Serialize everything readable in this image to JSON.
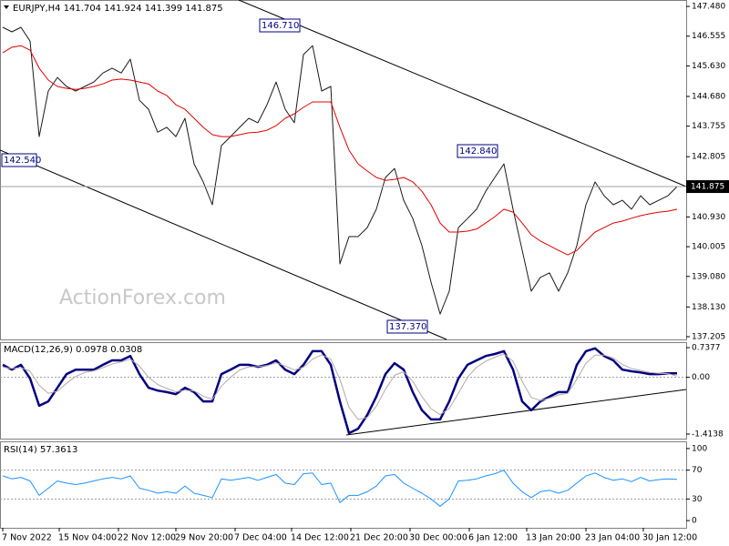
{
  "chart_data": [
    {
      "type": "line",
      "title": "EURJPY,H4  141.704 141.924 141.399 141.875",
      "watermark": "ActionForex.com",
      "xlim": [
        0,
        75
      ],
      "ylim": [
        137.12,
        147.68
      ],
      "yticks": [
        {
          "value": 147.48,
          "label": "147.480"
        },
        146.555,
        {
          "value": 145.63,
          "label": "145.630"
        },
        {
          "value": 144.68,
          "label": "144.680"
        },
        143.755,
        142.805,
        {
          "value": 140.93,
          "label": "140.930"
        },
        {
          "value": 140.005,
          "label": "140.005"
        },
        {
          "value": 139.08,
          "label": "139.080"
        },
        {
          "value": 138.13,
          "label": "138.130"
        },
        137.205
      ],
      "last_price": 141.875,
      "annotations": [
        "146.710",
        "142.540",
        "142.840",
        "137.370"
      ],
      "series": [
        {
          "color": "#1a1a1a",
          "width": 1,
          "values": [
            146.83,
            146.69,
            146.83,
            146.4,
            143.43,
            144.85,
            145.27,
            144.99,
            144.85,
            144.99,
            145.13,
            145.41,
            145.56,
            145.41,
            145.84,
            144.56,
            144.28,
            143.57,
            143.72,
            143.43,
            144.0,
            142.58,
            142.02,
            141.31,
            143.15,
            143.43,
            143.72,
            144.0,
            143.86,
            144.42,
            145.13,
            144.28,
            143.86,
            145.98,
            146.26,
            144.85,
            144.99,
            139.47,
            140.32,
            140.32,
            140.6,
            141.17,
            142.16,
            142.44,
            141.45,
            140.88,
            140.04,
            138.9,
            137.91,
            138.62,
            140.6,
            140.88,
            141.17,
            141.73,
            142.16,
            142.58,
            141.17,
            139.9,
            138.62,
            139.05,
            139.19,
            138.62,
            139.19,
            140.04,
            141.31,
            142.02,
            141.59,
            141.31,
            141.45,
            141.17,
            141.59,
            141.31,
            141.45,
            141.59,
            141.875
          ]
        },
        {
          "color": "#e00000",
          "width": 1,
          "values": [
            146.04,
            146.21,
            146.26,
            146.12,
            145.56,
            145.19,
            144.99,
            144.93,
            144.9,
            144.93,
            144.99,
            145.07,
            145.19,
            145.22,
            145.19,
            145.13,
            145.07,
            144.85,
            144.71,
            144.42,
            144.28,
            144.0,
            143.72,
            143.49,
            143.43,
            143.43,
            143.49,
            143.55,
            143.57,
            143.63,
            143.77,
            144.0,
            144.14,
            144.34,
            144.51,
            144.51,
            144.51,
            143.72,
            143.01,
            142.58,
            142.36,
            142.16,
            142.07,
            142.1,
            142.16,
            142.02,
            141.73,
            141.31,
            140.74,
            140.46,
            140.46,
            140.49,
            140.55,
            140.74,
            140.94,
            141.17,
            141.08,
            140.74,
            140.38,
            140.18,
            140.04,
            139.89,
            139.75,
            139.89,
            140.18,
            140.46,
            140.6,
            140.74,
            140.8,
            140.89,
            140.97,
            141.03,
            141.08,
            141.11,
            141.17
          ]
        }
      ]
    },
    {
      "type": "line",
      "title": "MACD(12,26,9) 0.0978 0.0308",
      "xlim": [
        0,
        75
      ],
      "ylim": [
        -1.527,
        0.874
      ],
      "yticks": [
        0.7377,
        {
          "value": 0,
          "label": "0.00"
        },
        -1.4138
      ],
      "levels": [
        0
      ],
      "series": [
        {
          "color": "#000080",
          "width": 2.5,
          "values": [
            0.31,
            0.19,
            0.31,
            -0.03,
            -0.71,
            -0.6,
            -0.26,
            0.08,
            0.19,
            0.19,
            0.19,
            0.31,
            0.42,
            0.42,
            0.53,
            0.08,
            -0.26,
            -0.33,
            -0.37,
            -0.42,
            -0.26,
            -0.37,
            -0.6,
            -0.6,
            0.08,
            0.19,
            0.31,
            0.31,
            0.26,
            0.31,
            0.42,
            0.19,
            0.08,
            0.31,
            0.65,
            0.65,
            0.31,
            -0.6,
            -1.39,
            -1.28,
            -0.94,
            -0.48,
            0.08,
            0.35,
            0.19,
            -0.37,
            -0.82,
            -1.05,
            -1.05,
            -0.6,
            -0.03,
            0.31,
            0.42,
            0.53,
            0.58,
            0.65,
            0.19,
            -0.6,
            -0.82,
            -0.6,
            -0.48,
            -0.37,
            -0.37,
            0.31,
            0.65,
            0.72,
            0.53,
            0.42,
            0.19,
            0.15,
            0.12,
            0.08,
            0.08,
            0.1,
            0.0978
          ]
        },
        {
          "color": "#b8a8a8",
          "width": 1,
          "values": [
            0.25,
            0.22,
            0.24,
            0.15,
            -0.2,
            -0.4,
            -0.35,
            -0.15,
            0.02,
            0.12,
            0.16,
            0.24,
            0.33,
            0.38,
            0.45,
            0.28,
            0.0,
            -0.18,
            -0.28,
            -0.36,
            -0.32,
            -0.34,
            -0.47,
            -0.55,
            -0.22,
            0.0,
            0.18,
            0.26,
            0.27,
            0.29,
            0.36,
            0.28,
            0.18,
            0.25,
            0.45,
            0.56,
            0.45,
            -0.05,
            -0.75,
            -1.05,
            -1.0,
            -0.72,
            -0.3,
            0.05,
            0.14,
            -0.1,
            -0.48,
            -0.78,
            -0.93,
            -0.78,
            -0.4,
            0.0,
            0.25,
            0.4,
            0.5,
            0.58,
            0.4,
            -0.1,
            -0.5,
            -0.58,
            -0.52,
            -0.44,
            -0.4,
            -0.05,
            0.35,
            0.55,
            0.55,
            0.48,
            0.32,
            0.22,
            0.17,
            0.12,
            0.1,
            0.09,
            0.0308
          ]
        }
      ]
    },
    {
      "type": "line",
      "title": "RSI(14) 57.3613",
      "xlim": [
        0,
        75
      ],
      "ylim": [
        -10,
        110
      ],
      "yticks": [
        100,
        70,
        30,
        0
      ],
      "levels": [
        70,
        30
      ],
      "xticks": [
        {
          "value": 0,
          "label": "7 Nov 2022"
        },
        {
          "value": 6.2,
          "label": "15 Nov 04:00"
        },
        {
          "value": 12.7,
          "label": "22 Nov 12:00"
        },
        {
          "value": 19,
          "label": "29 Nov 20:00"
        },
        {
          "value": 25.5,
          "label": "7 Dec 04:00"
        },
        {
          "value": 31.7,
          "label": "14 Dec 12:00"
        },
        {
          "value": 38.2,
          "label": "21 Dec 20:00"
        },
        {
          "value": 44.7,
          "label": "30 Dec 00:00"
        },
        {
          "value": 51.2,
          "label": "6 Jan 12:00"
        },
        {
          "value": 57.5,
          "label": "13 Jan 20:00"
        },
        {
          "value": 64,
          "label": "23 Jan 04:00"
        },
        {
          "value": 70.3,
          "label": "30 Jan 12:00"
        }
      ],
      "series": [
        {
          "color": "#1e90ff",
          "width": 1,
          "values": [
            62,
            58,
            60,
            55,
            35,
            45,
            55,
            52,
            50,
            52,
            55,
            58,
            60,
            58,
            62,
            45,
            42,
            38,
            40,
            38,
            48,
            38,
            35,
            32,
            58,
            56,
            58,
            60,
            56,
            60,
            64,
            52,
            50,
            65,
            66,
            50,
            52,
            25,
            35,
            35,
            40,
            48,
            62,
            64,
            52,
            45,
            38,
            30,
            20,
            30,
            55,
            56,
            58,
            62,
            65,
            70,
            52,
            40,
            32,
            40,
            42,
            38,
            42,
            52,
            62,
            66,
            60,
            56,
            58,
            54,
            60,
            55,
            57,
            58,
            57.3613
          ]
        }
      ]
    }
  ]
}
